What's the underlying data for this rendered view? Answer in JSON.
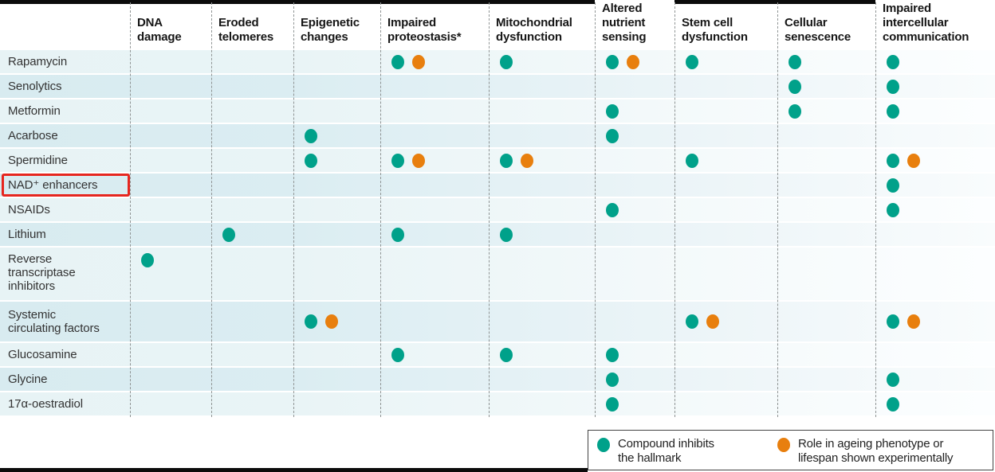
{
  "colors": {
    "teal": "#00a18a",
    "orange": "#e87f0e",
    "highlight_red": "#e6261f"
  },
  "chart_data": {
    "type": "table",
    "title": "Compounds versus hallmarks of ageing matrix",
    "mark_legend": {
      "inhibits": "teal dot",
      "experimental": "orange dot"
    },
    "columns": [
      {
        "id": "dna",
        "label": "DNA damage"
      },
      {
        "id": "telomeres",
        "label": "Eroded telomeres"
      },
      {
        "id": "epigenetic",
        "label": "Epigenetic changes"
      },
      {
        "id": "proteostasis",
        "label": "Impaired proteostasis*"
      },
      {
        "id": "mitochondrial",
        "label": "Mitochondrial dysfunction"
      },
      {
        "id": "nutrient",
        "label": "Altered nutrient sensing"
      },
      {
        "id": "stemcell",
        "label": "Stem cell dysfunction"
      },
      {
        "id": "senescence",
        "label": "Cellular senescence"
      },
      {
        "id": "intercellular",
        "label": "Impaired intercellular communication"
      }
    ],
    "rows": [
      {
        "label": "Rapamycin",
        "highlight": false,
        "marks": {
          "proteostasis": [
            "inhibits",
            "experimental"
          ],
          "mitochondrial": [
            "inhibits"
          ],
          "nutrient": [
            "inhibits",
            "experimental"
          ],
          "stemcell": [
            "inhibits"
          ],
          "senescence": [
            "inhibits"
          ],
          "intercellular": [
            "inhibits"
          ]
        }
      },
      {
        "label": "Senolytics",
        "highlight": false,
        "marks": {
          "senescence": [
            "inhibits"
          ],
          "intercellular": [
            "inhibits"
          ]
        }
      },
      {
        "label": "Metformin",
        "highlight": false,
        "marks": {
          "nutrient": [
            "inhibits"
          ],
          "senescence": [
            "inhibits"
          ],
          "intercellular": [
            "inhibits"
          ]
        }
      },
      {
        "label": "Acarbose",
        "highlight": false,
        "marks": {
          "epigenetic": [
            "inhibits"
          ],
          "nutrient": [
            "inhibits"
          ]
        }
      },
      {
        "label": "Spermidine",
        "highlight": false,
        "marks": {
          "epigenetic": [
            "inhibits"
          ],
          "proteostasis": [
            "inhibits",
            "experimental"
          ],
          "mitochondrial": [
            "inhibits",
            "experimental"
          ],
          "stemcell": [
            "inhibits"
          ],
          "intercellular": [
            "inhibits",
            "experimental"
          ]
        }
      },
      {
        "label": "NAD⁺ enhancers",
        "highlight": true,
        "marks": {
          "intercellular": [
            "inhibits"
          ]
        }
      },
      {
        "label": "NSAIDs",
        "highlight": false,
        "marks": {
          "nutrient": [
            "inhibits"
          ],
          "intercellular": [
            "inhibits"
          ]
        }
      },
      {
        "label": "Lithium",
        "highlight": false,
        "marks": {
          "telomeres": [
            "inhibits"
          ],
          "proteostasis": [
            "inhibits"
          ],
          "mitochondrial": [
            "inhibits"
          ]
        }
      },
      {
        "label": "Reverse\ntranscriptase\ninhibitors",
        "highlight": false,
        "marks": {
          "dna": [
            "inhibits"
          ]
        }
      },
      {
        "label": "Systemic\ncirculating factors",
        "highlight": false,
        "marks": {
          "epigenetic": [
            "inhibits",
            "experimental"
          ],
          "stemcell": [
            "inhibits",
            "experimental"
          ],
          "intercellular": [
            "inhibits",
            "experimental"
          ]
        }
      },
      {
        "label": "Glucosamine",
        "highlight": false,
        "marks": {
          "proteostasis": [
            "inhibits"
          ],
          "mitochondrial": [
            "inhibits"
          ],
          "nutrient": [
            "inhibits"
          ]
        }
      },
      {
        "label": "Glycine",
        "highlight": false,
        "marks": {
          "nutrient": [
            "inhibits"
          ],
          "intercellular": [
            "inhibits"
          ]
        }
      },
      {
        "label": "17α-oestradiol",
        "highlight": false,
        "marks": {
          "nutrient": [
            "inhibits"
          ],
          "intercellular": [
            "inhibits"
          ]
        }
      }
    ]
  },
  "legend": {
    "items": [
      {
        "color": "teal",
        "label": "Compound inhibits\nthe hallmark"
      },
      {
        "color": "orange",
        "label": "Role in ageing phenotype or\nlifespan shown experimentally"
      }
    ]
  }
}
